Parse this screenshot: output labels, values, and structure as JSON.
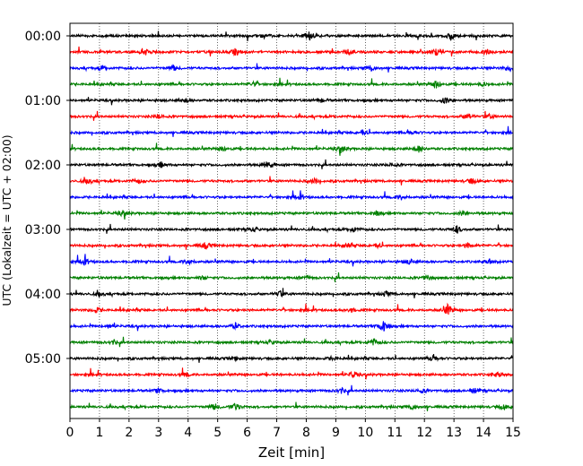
{
  "chart_data": {
    "type": "line",
    "title": "",
    "xlabel": "Zeit  [min]",
    "ylabel": "UTC (Lokalzeit = UTC + 02:00)",
    "xlim": [
      0,
      15
    ],
    "x_ticks": [
      0,
      1,
      2,
      3,
      4,
      5,
      6,
      7,
      8,
      9,
      10,
      11,
      12,
      13,
      14,
      15
    ],
    "y_tick_labels": [
      "00:00",
      "01:00",
      "02:00",
      "03:00",
      "04:00",
      "05:00"
    ],
    "grid": {
      "vertical": true,
      "style": "dotted"
    },
    "trace_colors": [
      "#000000",
      "#ff0000",
      "#0000ff",
      "#008000"
    ],
    "traces": [
      {
        "start": "00:00",
        "color": "#000000",
        "events": [
          [
            8.1,
            1.0
          ],
          [
            12.9,
            0.8
          ],
          [
            6.6,
            0.5
          ]
        ]
      },
      {
        "start": "00:15",
        "color": "#ff0000",
        "events": [
          [
            2.6,
            0.6
          ],
          [
            5.6,
            0.8
          ],
          [
            9.4,
            0.5
          ],
          [
            12.4,
            0.7
          ],
          [
            14.1,
            0.6
          ]
        ]
      },
      {
        "start": "00:30",
        "color": "#0000ff",
        "events": [
          [
            1.1,
            0.5
          ],
          [
            3.5,
            0.6
          ],
          [
            10.2,
            0.6
          ],
          [
            14.9,
            0.7
          ]
        ]
      },
      {
        "start": "00:45",
        "color": "#008000",
        "events": [
          [
            6.2,
            0.5
          ],
          [
            12.4,
            0.9
          ],
          [
            14.0,
            0.4
          ]
        ]
      },
      {
        "start": "01:00",
        "color": "#000000",
        "events": [
          [
            3.9,
            0.5
          ],
          [
            12.7,
            0.8
          ],
          [
            8.5,
            0.4
          ]
        ]
      },
      {
        "start": "01:15",
        "color": "#ff0000",
        "events": [
          [
            3.0,
            0.5
          ],
          [
            13.5,
            0.7
          ],
          [
            14.2,
            0.5
          ]
        ]
      },
      {
        "start": "01:30",
        "color": "#0000ff",
        "events": [
          [
            9.9,
            0.6
          ],
          [
            11.6,
            0.4
          ]
        ]
      },
      {
        "start": "01:45",
        "color": "#008000",
        "events": [
          [
            9.2,
            1.0
          ],
          [
            11.8,
            0.8
          ],
          [
            5.2,
            0.4
          ]
        ]
      },
      {
        "start": "02:00",
        "color": "#000000",
        "events": [
          [
            3.1,
            0.6
          ],
          [
            6.7,
            0.9
          ],
          [
            10.9,
            0.4
          ]
        ]
      },
      {
        "start": "02:15",
        "color": "#ff0000",
        "events": [
          [
            0.6,
            0.6
          ],
          [
            2.3,
            0.5
          ],
          [
            8.3,
            0.5
          ],
          [
            13.6,
            0.6
          ]
        ]
      },
      {
        "start": "02:30",
        "color": "#0000ff",
        "events": [
          [
            7.8,
            0.5
          ],
          [
            11.2,
            0.6
          ]
        ]
      },
      {
        "start": "02:45",
        "color": "#008000",
        "events": [
          [
            1.8,
            0.6
          ],
          [
            10.4,
            0.4
          ],
          [
            13.3,
            0.5
          ]
        ]
      },
      {
        "start": "03:00",
        "color": "#000000",
        "events": [
          [
            6.2,
            0.5
          ],
          [
            9.6,
            0.6
          ],
          [
            13.1,
            0.8
          ]
        ]
      },
      {
        "start": "03:15",
        "color": "#ff0000",
        "events": [
          [
            4.6,
            0.7
          ],
          [
            9.4,
            0.5
          ],
          [
            10.4,
            0.5
          ],
          [
            13.5,
            0.6
          ]
        ]
      },
      {
        "start": "03:30",
        "color": "#0000ff",
        "events": [
          [
            0.5,
            0.8
          ],
          [
            4.0,
            0.7
          ],
          [
            11.5,
            0.6
          ],
          [
            14.2,
            0.5
          ]
        ]
      },
      {
        "start": "03:45",
        "color": "#008000",
        "events": [
          [
            4.5,
            0.4
          ],
          [
            12.1,
            0.6
          ],
          [
            8.0,
            0.4
          ]
        ]
      },
      {
        "start": "04:00",
        "color": "#000000",
        "events": [
          [
            7.1,
            0.7
          ],
          [
            10.7,
            0.5
          ],
          [
            1.0,
            0.4
          ]
        ]
      },
      {
        "start": "04:15",
        "color": "#ff0000",
        "events": [
          [
            0.9,
            0.6
          ],
          [
            9.5,
            0.5
          ],
          [
            12.8,
            1.3
          ]
        ]
      },
      {
        "start": "04:30",
        "color": "#0000ff",
        "events": [
          [
            5.6,
            0.6
          ],
          [
            10.6,
            1.3
          ],
          [
            1.3,
            0.4
          ]
        ]
      },
      {
        "start": "04:45",
        "color": "#008000",
        "events": [
          [
            1.5,
            0.5
          ],
          [
            10.3,
            0.8
          ],
          [
            6.8,
            0.4
          ]
        ]
      },
      {
        "start": "05:00",
        "color": "#000000",
        "events": [
          [
            5.6,
            0.5
          ],
          [
            12.3,
            0.7
          ],
          [
            8.9,
            0.4
          ]
        ]
      },
      {
        "start": "05:15",
        "color": "#ff0000",
        "events": [
          [
            3.9,
            0.5
          ],
          [
            9.6,
            0.7
          ],
          [
            14.5,
            0.6
          ]
        ]
      },
      {
        "start": "05:30",
        "color": "#0000ff",
        "events": [
          [
            3.0,
            0.5
          ],
          [
            9.2,
            0.6
          ],
          [
            11.9,
            0.5
          ],
          [
            13.7,
            0.6
          ]
        ]
      },
      {
        "start": "05:45",
        "color": "#008000",
        "events": [
          [
            4.9,
            0.7
          ],
          [
            5.6,
            0.9
          ],
          [
            11.6,
            0.7
          ],
          [
            14.7,
            0.6
          ]
        ]
      }
    ]
  }
}
